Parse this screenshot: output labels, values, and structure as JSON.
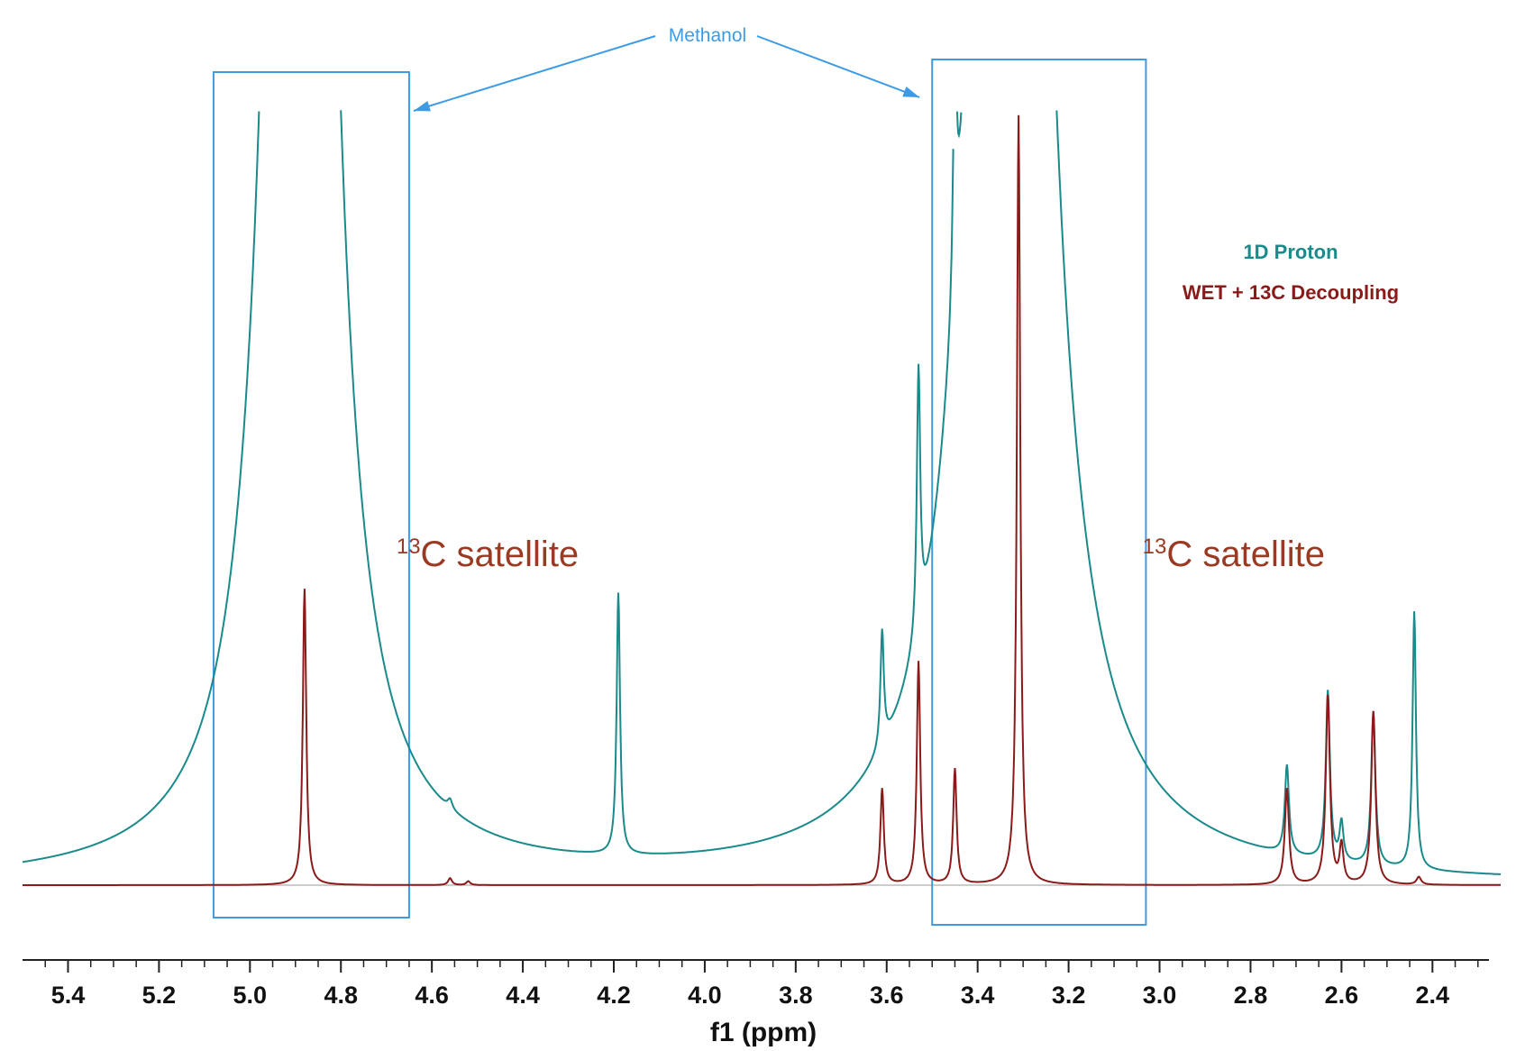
{
  "chart_data": {
    "type": "line",
    "title": "",
    "xlabel": "f1 (ppm)",
    "ylabel": "",
    "xlim": [
      5.5,
      2.25
    ],
    "x_reversed": true,
    "ylim": [
      -0.05,
      1.0
    ],
    "grid": false,
    "x_ticks": [
      5.4,
      5.2,
      5.0,
      4.8,
      4.6,
      4.4,
      4.2,
      4.0,
      3.8,
      3.6,
      3.4,
      3.2,
      3.0,
      2.8,
      2.6,
      2.4
    ],
    "x_tick_labels": [
      "5.4",
      "5.2",
      "5.0",
      "4.8",
      "4.6",
      "4.4",
      "4.2",
      "4.0",
      "3.8",
      "3.6",
      "3.4",
      "3.2",
      "3.0",
      "2.8",
      "2.6",
      "2.4"
    ],
    "legend_position": "right",
    "series": [
      {
        "name": "1D Proton",
        "color": "#1a8a8a",
        "peaks": [
          {
            "x": 4.89,
            "height": 5.0,
            "width": 0.045
          },
          {
            "x": 4.56,
            "height": 0.012,
            "width": 0.006
          },
          {
            "x": 4.19,
            "height": 0.34,
            "width": 0.0045
          },
          {
            "x": 3.61,
            "height": 0.15,
            "width": 0.0045
          },
          {
            "x": 3.53,
            "height": 0.34,
            "width": 0.0045
          },
          {
            "x": 3.45,
            "height": 0.32,
            "width": 0.0045
          },
          {
            "x": 3.33,
            "height": 4.0,
            "width": 0.06
          },
          {
            "x": 2.72,
            "height": 0.115,
            "width": 0.0055
          },
          {
            "x": 2.63,
            "height": 0.22,
            "width": 0.0055
          },
          {
            "x": 2.6,
            "height": 0.05,
            "width": 0.005
          },
          {
            "x": 2.53,
            "height": 0.2,
            "width": 0.0055
          },
          {
            "x": 2.44,
            "height": 0.335,
            "width": 0.0045
          }
        ]
      },
      {
        "name": "WET + 13C Decoupling",
        "color": "#8b1a1a",
        "peaks": [
          {
            "x": 4.88,
            "height": 0.385,
            "width": 0.0045
          },
          {
            "x": 4.56,
            "height": 0.009,
            "width": 0.005
          },
          {
            "x": 4.52,
            "height": 0.005,
            "width": 0.005
          },
          {
            "x": 3.61,
            "height": 0.125,
            "width": 0.0045
          },
          {
            "x": 3.53,
            "height": 0.29,
            "width": 0.0045
          },
          {
            "x": 3.45,
            "height": 0.15,
            "width": 0.0045
          },
          {
            "x": 3.31,
            "height": 1.0,
            "width": 0.0045
          },
          {
            "x": 2.72,
            "height": 0.125,
            "width": 0.0055
          },
          {
            "x": 2.63,
            "height": 0.245,
            "width": 0.0055
          },
          {
            "x": 2.6,
            "height": 0.05,
            "width": 0.005
          },
          {
            "x": 2.53,
            "height": 0.225,
            "width": 0.0055
          },
          {
            "x": 2.43,
            "height": 0.01,
            "width": 0.006
          }
        ]
      }
    ],
    "annotations": {
      "methanol": {
        "label": "Methanol",
        "color": "#3d9be6",
        "boxes": [
          {
            "x_from": 5.08,
            "x_to": 4.65
          },
          {
            "x_from": 3.5,
            "x_to": 3.03
          }
        ]
      },
      "satellites": [
        {
          "sup": "13",
          "text": "C satellite",
          "x": 4.45
        },
        {
          "sup": "13",
          "text": "C satellite",
          "x": 2.65
        }
      ]
    }
  }
}
